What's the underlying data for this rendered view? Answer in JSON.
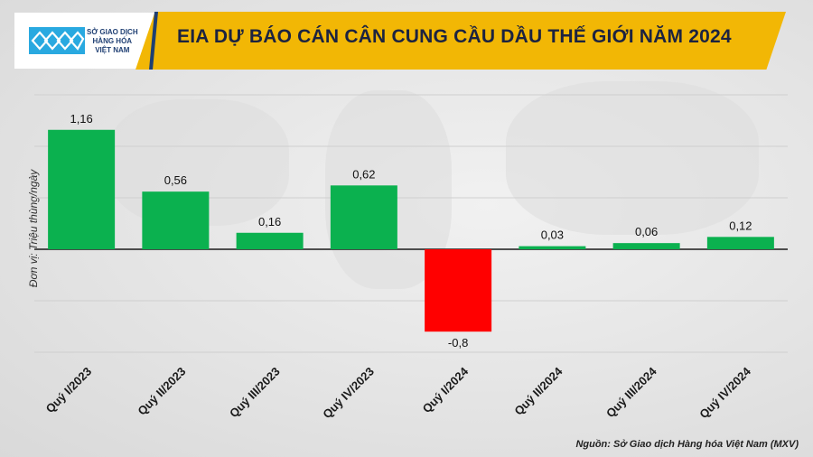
{
  "header": {
    "title": "EIA DỰ BÁO CÁN CÂN CUNG CẦU DẦU THẾ GIỚI NĂM 2024",
    "logo_lines": [
      "SỞ GIAO DỊCH",
      "HÀNG HÓA",
      "VIỆT NAM"
    ]
  },
  "colors": {
    "positive": "#0bb14f",
    "negative": "#ff0000",
    "header_bg": "#f2b705",
    "title": "#1c2340",
    "logo": "#1f3f73"
  },
  "source_note": "Nguồn: Sở Giao dịch Hàng hóa Việt Nam (MXV)",
  "chart_data": {
    "type": "bar",
    "title": "EIA DỰ BÁO CÁN CÂN CUNG CẦU DẦU THẾ GIỚI NĂM 2024",
    "ylabel": "Đơn vị: Triệu thùng/ngày",
    "categories": [
      "Quý I/2023",
      "Quý II/2023",
      "Quý III/2023",
      "Quý IV/2023",
      "Quý I/2024",
      "Quý II/2024",
      "Quý III/2024",
      "Quý IV/2024"
    ],
    "values": [
      1.16,
      0.56,
      0.16,
      0.62,
      -0.8,
      0.03,
      0.06,
      0.12
    ],
    "value_labels": [
      "1,16",
      "0,56",
      "0,16",
      "0,62",
      "-0,8",
      "0,03",
      "0,06",
      "0,12"
    ],
    "ylim": [
      -1.0,
      1.5
    ],
    "grid": true,
    "legend": "none"
  }
}
